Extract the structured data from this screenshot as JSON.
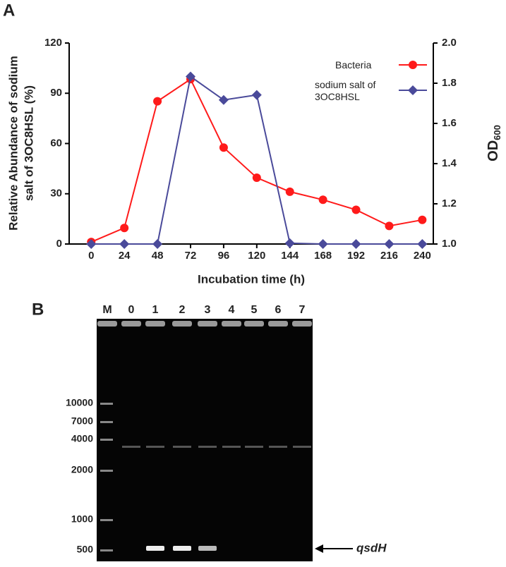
{
  "chart_data": {
    "type": "line",
    "panel_label": "A",
    "x_label": "Incubation time (h)",
    "y_label": [
      "Relative Abundance of sodium",
      "salt of 3OC8HSL (%)"
    ],
    "y2_label": {
      "text": "OD",
      "subscript": "600"
    },
    "x": [
      0,
      24,
      48,
      72,
      96,
      120,
      144,
      168,
      192,
      216,
      240
    ],
    "xlim": [
      -16,
      248
    ],
    "xticks": [
      0,
      24,
      48,
      72,
      96,
      120,
      144,
      168,
      192,
      216,
      240
    ],
    "ylim": [
      0,
      120
    ],
    "yticks": [
      0,
      30,
      60,
      90,
      120
    ],
    "y2lim": [
      1,
      2
    ],
    "y2ticks": [
      {
        "value": 1,
        "label": "1.0"
      },
      {
        "value": 1.2,
        "label": "1.2"
      },
      {
        "value": 1.4,
        "label": "1.4"
      },
      {
        "value": 1.6,
        "label": "1.6"
      },
      {
        "value": 1.8,
        "label": "1.8"
      },
      {
        "value": 2,
        "label": "2.0"
      }
    ],
    "series": [
      {
        "name": "Bacteria",
        "color": "#ff1a1a",
        "marker": "circle",
        "axis": "y2",
        "values": [
          1.01,
          1.08,
          1.71,
          1.82,
          1.48,
          1.33,
          1.26,
          1.22,
          1.17,
          1.09,
          1.12
        ]
      },
      {
        "name": "sodium salt of 3OC8HSL",
        "color": "#4a4a9a",
        "marker": "diamond",
        "values": [
          0,
          0,
          0,
          100,
          86,
          89,
          0.5,
          0,
          0,
          0,
          0
        ]
      }
    ]
  },
  "panel_b": {
    "label": "B",
    "lanes": [
      "M",
      "0",
      "1",
      "2",
      "3",
      "4",
      "5",
      "6",
      "7"
    ],
    "ladder": [
      "10000",
      "7000",
      "4000",
      "2000",
      "1000",
      "500"
    ],
    "band_label": "qsdH"
  }
}
